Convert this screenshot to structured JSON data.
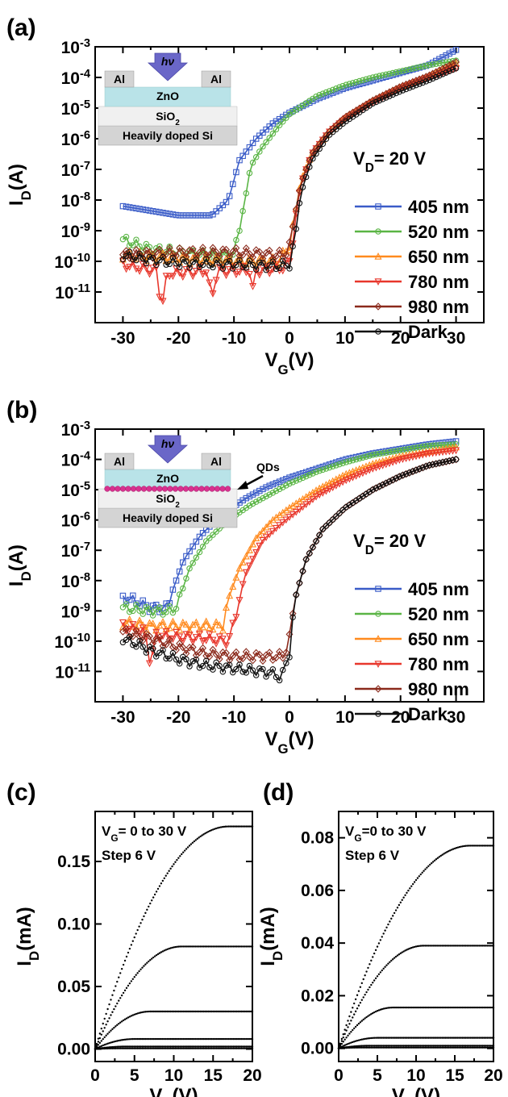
{
  "chart_data": [
    {
      "panel": "(a)",
      "type": "scatter",
      "xlabel": "V",
      "xlabel_sub": "G",
      "xlabel_unit": "(V)",
      "ylabel": "I",
      "ylabel_sub": "D",
      "ylabel_unit": "(A)",
      "xlim": [
        -35,
        35
      ],
      "ylim_log10": [
        -12,
        -3
      ],
      "yscale": "log",
      "x_ticks": [
        "-30",
        "-20",
        "-10",
        "0",
        "10",
        "20",
        "30"
      ],
      "y_ticks": [
        {
          "base": "10",
          "exp": "-11"
        },
        {
          "base": "10",
          "exp": "-10"
        },
        {
          "base": "10",
          "exp": "-9"
        },
        {
          "base": "10",
          "exp": "-8"
        },
        {
          "base": "10",
          "exp": "-7"
        },
        {
          "base": "10",
          "exp": "-6"
        },
        {
          "base": "10",
          "exp": "-5"
        },
        {
          "base": "10",
          "exp": "-4"
        },
        {
          "base": "10",
          "exp": "-3"
        }
      ],
      "annotation": {
        "main": "V",
        "sub": "D",
        "rest": "= 20 V"
      },
      "inset": {
        "light": "hν",
        "electrode_left": "Al",
        "electrode_right": "Al",
        "channel": "ZnO",
        "dielectric_main": "SiO",
        "dielectric_sub": "2",
        "substrate": "Heavily   doped  Si"
      },
      "series": [
        {
          "name": "405 nm",
          "color": "#3a5cc8",
          "marker": "square",
          "keypoints": [
            [
              -30,
              -8.2
            ],
            [
              -20,
              -8.5
            ],
            [
              -14,
              -8.5
            ],
            [
              -11,
              -8.0
            ],
            [
              -9,
              -6.7
            ],
            [
              -6,
              -6.0
            ],
            [
              -3,
              -5.5
            ],
            [
              0,
              -5.15
            ],
            [
              5,
              -4.7
            ],
            [
              10,
              -4.35
            ],
            [
              15,
              -4.1
            ],
            [
              20,
              -3.85
            ],
            [
              25,
              -3.6
            ],
            [
              30,
              -3.1
            ]
          ]
        },
        {
          "name": "520 nm",
          "color": "#5ab545",
          "marker": "circle",
          "keypoints": [
            [
              -30,
              -9.3
            ],
            [
              -25,
              -9.6
            ],
            [
              -15,
              -9.8
            ],
            [
              -10,
              -9.8
            ],
            [
              -8,
              -8.0
            ],
            [
              -7,
              -6.9
            ],
            [
              -5,
              -6.3
            ],
            [
              -2,
              -5.6
            ],
            [
              0,
              -5.2
            ],
            [
              5,
              -4.6
            ],
            [
              10,
              -4.25
            ],
            [
              15,
              -4.0
            ],
            [
              20,
              -3.8
            ],
            [
              25,
              -3.6
            ],
            [
              30,
              -3.45
            ]
          ]
        },
        {
          "name": "650 nm",
          "color": "#ff8a1e",
          "marker": "triangle-up",
          "keypoints": [
            [
              -30,
              -9.8
            ],
            [
              -20,
              -9.9
            ],
            [
              -10,
              -10.0
            ],
            [
              -2,
              -10.0
            ],
            [
              0,
              -9.5
            ],
            [
              1,
              -8.5
            ],
            [
              2,
              -7.4
            ],
            [
              4,
              -6.5
            ],
            [
              7,
              -5.8
            ],
            [
              10,
              -5.3
            ],
            [
              15,
              -4.75
            ],
            [
              20,
              -4.3
            ],
            [
              25,
              -3.95
            ],
            [
              30,
              -3.55
            ]
          ]
        },
        {
          "name": "780 nm",
          "color": "#e8372c",
          "marker": "triangle-down",
          "keypoints": [
            [
              -30,
              -10.1
            ],
            [
              -24,
              -10.3
            ],
            [
              -23,
              -11.5
            ],
            [
              -22,
              -10.4
            ],
            [
              -15,
              -10.3
            ],
            [
              -14,
              -11.2
            ],
            [
              -13,
              -10.3
            ],
            [
              -7,
              -10.3
            ],
            [
              -6.5,
              -11.1
            ],
            [
              -6,
              -10.3
            ],
            [
              -1,
              -10.2
            ],
            [
              0,
              -10.0
            ],
            [
              1,
              -8.8
            ],
            [
              2,
              -7.5
            ],
            [
              4,
              -6.5
            ],
            [
              7,
              -5.8
            ],
            [
              10,
              -5.35
            ],
            [
              15,
              -4.8
            ],
            [
              20,
              -4.35
            ],
            [
              25,
              -4.0
            ],
            [
              30,
              -3.7
            ]
          ]
        },
        {
          "name": "980 nm",
          "color": "#8b2a1c",
          "marker": "diamond",
          "keypoints": [
            [
              -30,
              -9.8
            ],
            [
              -20,
              -9.7
            ],
            [
              -10,
              -9.7
            ],
            [
              -1,
              -9.8
            ],
            [
              0,
              -9.5
            ],
            [
              1,
              -8.5
            ],
            [
              2,
              -7.5
            ],
            [
              4,
              -6.5
            ],
            [
              7,
              -5.8
            ],
            [
              10,
              -5.3
            ],
            [
              15,
              -4.75
            ],
            [
              20,
              -4.3
            ],
            [
              25,
              -3.95
            ],
            [
              30,
              -3.5
            ]
          ]
        },
        {
          "name": "Dark",
          "color": "#111111",
          "marker": "circle-open",
          "keypoints": [
            [
              -30,
              -9.8
            ],
            [
              -25,
              -9.95
            ],
            [
              -20,
              -10.05
            ],
            [
              -10,
              -10.1
            ],
            [
              -2,
              -10.15
            ],
            [
              0,
              -10.1
            ],
            [
              1,
              -9.3
            ],
            [
              2,
              -7.8
            ],
            [
              4,
              -6.7
            ],
            [
              7,
              -5.9
            ],
            [
              10,
              -5.45
            ],
            [
              15,
              -4.85
            ],
            [
              20,
              -4.45
            ],
            [
              25,
              -4.1
            ],
            [
              30,
              -3.7
            ]
          ]
        }
      ]
    },
    {
      "panel": "(b)",
      "type": "scatter",
      "xlabel": "V",
      "xlabel_sub": "G",
      "xlabel_unit": "(V)",
      "ylabel": "I",
      "ylabel_sub": "D",
      "ylabel_unit": "(A)",
      "xlim": [
        -35,
        35
      ],
      "ylim_log10": [
        -12,
        -3
      ],
      "yscale": "log",
      "x_ticks": [
        "-30",
        "-20",
        "-10",
        "0",
        "10",
        "20",
        "30"
      ],
      "y_ticks": [
        {
          "base": "10",
          "exp": "-11"
        },
        {
          "base": "10",
          "exp": "-10"
        },
        {
          "base": "10",
          "exp": "-9"
        },
        {
          "base": "10",
          "exp": "-8"
        },
        {
          "base": "10",
          "exp": "-7"
        },
        {
          "base": "10",
          "exp": "-6"
        },
        {
          "base": "10",
          "exp": "-5"
        },
        {
          "base": "10",
          "exp": "-4"
        },
        {
          "base": "10",
          "exp": "-3"
        }
      ],
      "annotation": {
        "main": "V",
        "sub": "D",
        "rest": "= 20 V"
      },
      "inset": {
        "light": "hν",
        "electrode_left": "Al",
        "electrode_right": "Al",
        "channel": "ZnO",
        "dielectric_main": "SiO",
        "dielectric_sub": "2",
        "substrate": "Heavily   doped  Si",
        "qd_label": "QDs"
      },
      "series": [
        {
          "name": "405 nm",
          "color": "#3a5cc8",
          "marker": "square",
          "keypoints": [
            [
              -30,
              -8.5
            ],
            [
              -25,
              -8.9
            ],
            [
              -22,
              -8.9
            ],
            [
              -21,
              -8.3
            ],
            [
              -19,
              -7.3
            ],
            [
              -16,
              -6.5
            ],
            [
              -12,
              -5.8
            ],
            [
              -8,
              -5.3
            ],
            [
              -4,
              -4.9
            ],
            [
              0,
              -4.6
            ],
            [
              5,
              -4.3
            ],
            [
              10,
              -4.0
            ],
            [
              15,
              -3.8
            ],
            [
              20,
              -3.65
            ],
            [
              25,
              -3.5
            ],
            [
              30,
              -3.4
            ]
          ]
        },
        {
          "name": "520 nm",
          "color": "#5ab545",
          "marker": "circle",
          "keypoints": [
            [
              -30,
              -8.9
            ],
            [
              -25,
              -9.0
            ],
            [
              -21,
              -9.0
            ],
            [
              -20,
              -8.7
            ],
            [
              -18,
              -7.6
            ],
            [
              -15,
              -6.7
            ],
            [
              -11,
              -6.0
            ],
            [
              -7,
              -5.5
            ],
            [
              -3,
              -5.1
            ],
            [
              0,
              -4.8
            ],
            [
              5,
              -4.4
            ],
            [
              10,
              -4.1
            ],
            [
              15,
              -3.85
            ],
            [
              20,
              -3.7
            ],
            [
              25,
              -3.55
            ],
            [
              30,
              -3.5
            ]
          ]
        },
        {
          "name": "650 nm",
          "color": "#ff8a1e",
          "marker": "triangle-up",
          "keypoints": [
            [
              -30,
              -9.4
            ],
            [
              -25,
              -9.5
            ],
            [
              -15,
              -9.5
            ],
            [
              -12,
              -9.5
            ],
            [
              -11,
              -8.6
            ],
            [
              -9,
              -7.6
            ],
            [
              -6,
              -6.6
            ],
            [
              -3,
              -6.0
            ],
            [
              0,
              -5.6
            ],
            [
              5,
              -5.0
            ],
            [
              10,
              -4.5
            ],
            [
              15,
              -4.15
            ],
            [
              20,
              -3.9
            ],
            [
              25,
              -3.75
            ],
            [
              30,
              -3.6
            ]
          ]
        },
        {
          "name": "780 nm",
          "color": "#e8372c",
          "marker": "triangle-down",
          "keypoints": [
            [
              -30,
              -9.5
            ],
            [
              -26,
              -9.7
            ],
            [
              -25,
              -10.8
            ],
            [
              -24,
              -9.8
            ],
            [
              -15,
              -9.9
            ],
            [
              -11,
              -10.0
            ],
            [
              -10,
              -9.4
            ],
            [
              -8,
              -7.8
            ],
            [
              -5,
              -6.7
            ],
            [
              -2,
              -6.2
            ],
            [
              0,
              -5.9
            ],
            [
              5,
              -5.2
            ],
            [
              10,
              -4.7
            ],
            [
              15,
              -4.3
            ],
            [
              20,
              -4.0
            ],
            [
              25,
              -3.8
            ],
            [
              30,
              -3.7
            ]
          ]
        },
        {
          "name": "980 nm",
          "color": "#8b2a1c",
          "marker": "diamond",
          "keypoints": [
            [
              -30,
              -9.7
            ],
            [
              -25,
              -9.9
            ],
            [
              -20,
              -10.2
            ],
            [
              -15,
              -10.4
            ],
            [
              -10,
              -10.5
            ],
            [
              -5,
              -10.5
            ],
            [
              -1,
              -10.5
            ],
            [
              0,
              -9.9
            ],
            [
              1,
              -8.6
            ],
            [
              3,
              -7.3
            ],
            [
              6,
              -6.3
            ],
            [
              10,
              -5.6
            ],
            [
              15,
              -5.0
            ],
            [
              20,
              -4.55
            ],
            [
              25,
              -4.2
            ],
            [
              30,
              -4.0
            ]
          ]
        },
        {
          "name": "Dark",
          "color": "#111111",
          "marker": "circle-open",
          "keypoints": [
            [
              -30,
              -9.9
            ],
            [
              -25,
              -10.3
            ],
            [
              -20,
              -10.6
            ],
            [
              -15,
              -10.8
            ],
            [
              -10,
              -10.9
            ],
            [
              -5,
              -11.0
            ],
            [
              -2,
              -11.1
            ],
            [
              -1.5,
              -11.4
            ],
            [
              -1,
              -10.9
            ],
            [
              0,
              -10.4
            ],
            [
              1,
              -8.6
            ],
            [
              3,
              -7.3
            ],
            [
              6,
              -6.3
            ],
            [
              10,
              -5.6
            ],
            [
              15,
              -5.0
            ],
            [
              20,
              -4.55
            ],
            [
              25,
              -4.2
            ],
            [
              30,
              -4.0
            ]
          ]
        }
      ],
      "legend": "right"
    },
    {
      "panel": "(c)",
      "type": "line",
      "xlabel": "V",
      "xlabel_sub": "D",
      "xlabel_unit": "(V)",
      "ylabel": "I",
      "ylabel_sub": "D",
      "ylabel_unit": "(mA)",
      "xlim": [
        0,
        20
      ],
      "ylim": [
        -0.01,
        0.19
      ],
      "x_ticks": [
        "0",
        "5",
        "10",
        "15",
        "20"
      ],
      "y_ticks": [
        "0.00",
        "0.05",
        "0.10",
        "0.15"
      ],
      "y_tick_values": [
        0,
        0.05,
        0.1,
        0.15
      ],
      "annotation": {
        "line1_main": "V",
        "line1_sub": "G",
        "line1_rest": "= 0 to 30 V",
        "line2": "Step 6 V"
      },
      "curves_saturation": [
        0.178,
        0.082,
        0.03,
        0.008,
        0.002,
        0.0005
      ],
      "curves_vsat": [
        17,
        11,
        7,
        5,
        4,
        3
      ]
    },
    {
      "panel": "(d)",
      "type": "line",
      "xlabel": "V",
      "xlabel_sub": "D",
      "xlabel_unit": "(V)",
      "ylabel": "I",
      "ylabel_sub": "D",
      "ylabel_unit": "(mA)",
      "xlim": [
        0,
        20
      ],
      "ylim": [
        -0.005,
        0.09
      ],
      "x_ticks": [
        "0",
        "5",
        "10",
        "15",
        "20"
      ],
      "y_ticks": [
        "0.00",
        "0.02",
        "0.04",
        "0.06",
        "0.08"
      ],
      "y_tick_values": [
        0,
        0.02,
        0.04,
        0.06,
        0.08
      ],
      "annotation": {
        "line1_main": "V",
        "line1_sub": "G",
        "line1_rest": "=0 to 30 V",
        "line2": "Step 6 V"
      },
      "curves_saturation": [
        0.077,
        0.039,
        0.0155,
        0.004,
        0.001,
        0.0003
      ],
      "curves_vsat": [
        17,
        11,
        7,
        5,
        4,
        3
      ]
    }
  ]
}
